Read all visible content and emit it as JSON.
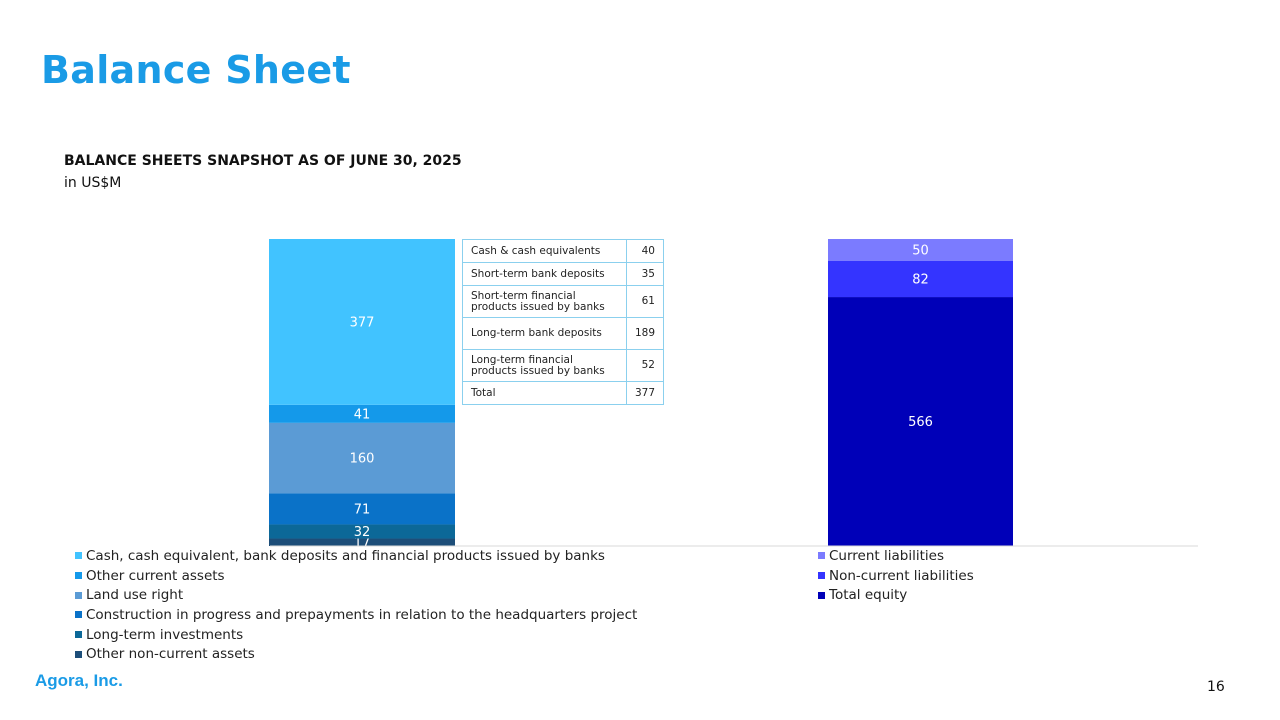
{
  "page": {
    "title": "Balance Sheet",
    "company": "Agora, Inc.",
    "page_number": "16"
  },
  "chart_data": {
    "type": "bar",
    "stacked": true,
    "title": "BALANCE SHEETS SNAPSHOT AS OF JUNE 30, 2025",
    "subtitle": "in US$M",
    "xlabel": "",
    "ylabel": "",
    "ylim": [
      0,
      700
    ],
    "grid": false,
    "legend_position": "bottom",
    "assets": {
      "series": [
        {
          "name": "Cash, cash equivalent, bank deposits and financial products issued by banks",
          "value": 377,
          "label": "377",
          "color": "#41C3FF"
        },
        {
          "name": "Other current assets",
          "value": 41,
          "label": "41",
          "color": "#1499EA"
        },
        {
          "name": "Land use right",
          "value": 160,
          "label": "160",
          "color": "#5B9BD5"
        },
        {
          "name": "Construction in progress and prepayments in relation to the headquarters project",
          "value": 71,
          "label": "71",
          "color": "#0A72C8"
        },
        {
          "name": "Long-term investments",
          "value": 32,
          "label": "32",
          "color": "#0C6898"
        },
        {
          "name": "Other non-current assets",
          "value": 17,
          "label": "17",
          "color": "#1D4E79"
        }
      ]
    },
    "liabilities_equity": {
      "series": [
        {
          "name": "Current liabilities",
          "value": 50,
          "label": "50",
          "color": "#7B7BFF"
        },
        {
          "name": "Non-current liabilities",
          "value": 82,
          "label": "82",
          "color": "#3434FF"
        },
        {
          "name": "Total equity",
          "value": 566,
          "label": "566",
          "color": "#0000B8"
        }
      ]
    },
    "breakdown_table": [
      {
        "label": "Cash & cash equivalents",
        "value": "40"
      },
      {
        "label": "Short-term bank deposits",
        "value": "35"
      },
      {
        "label": "Short-term financial products issued by banks",
        "value": "61"
      },
      {
        "label": "Long-term bank deposits",
        "value": "189"
      },
      {
        "label": "Long-term financial products issued by banks",
        "value": "52"
      },
      {
        "label": "Total",
        "value": "377"
      }
    ]
  }
}
